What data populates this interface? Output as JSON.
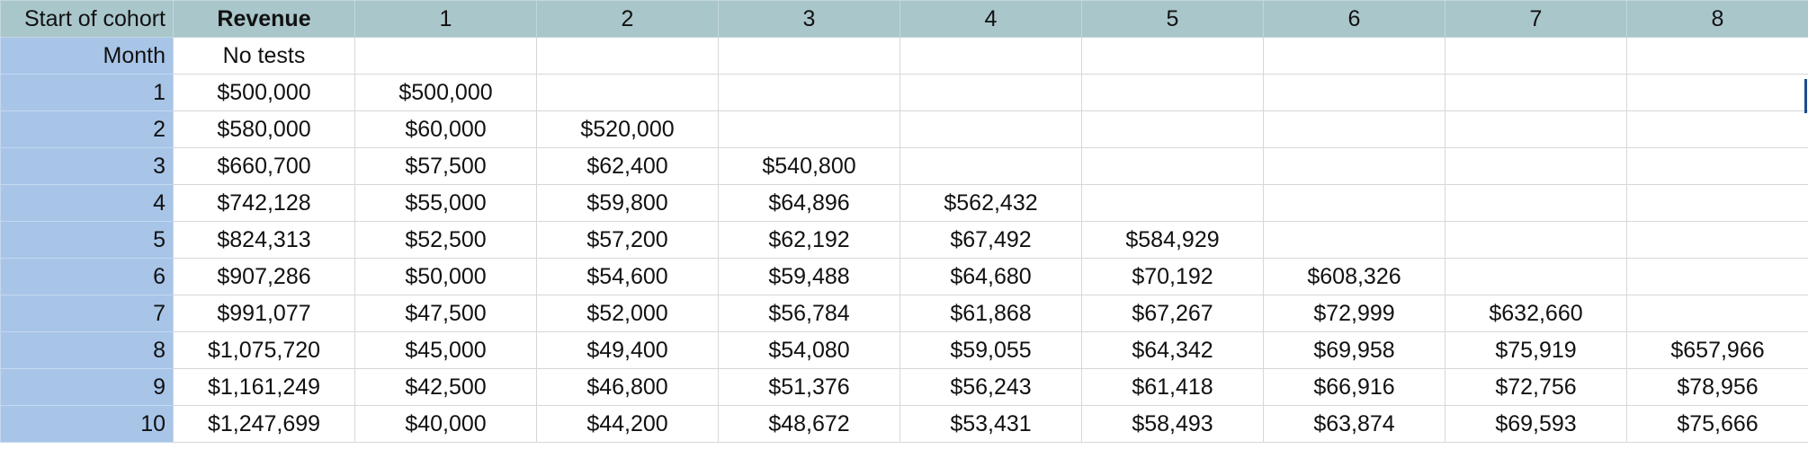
{
  "header": {
    "first": "Start of cohort",
    "revenue": "Revenue",
    "months": [
      "1",
      "2",
      "3",
      "4",
      "5",
      "6",
      "7",
      "8"
    ]
  },
  "subheader": {
    "label": "Month",
    "revenue": "No tests"
  },
  "rows": [
    {
      "month": "1",
      "revenue": "$500,000",
      "cells": [
        "$500,000",
        "",
        "",
        "",
        "",
        "",
        "",
        ""
      ]
    },
    {
      "month": "2",
      "revenue": "$580,000",
      "cells": [
        "$60,000",
        "$520,000",
        "",
        "",
        "",
        "",
        "",
        ""
      ]
    },
    {
      "month": "3",
      "revenue": "$660,700",
      "cells": [
        "$57,500",
        "$62,400",
        "$540,800",
        "",
        "",
        "",
        "",
        ""
      ]
    },
    {
      "month": "4",
      "revenue": "$742,128",
      "cells": [
        "$55,000",
        "$59,800",
        "$64,896",
        "$562,432",
        "",
        "",
        "",
        ""
      ]
    },
    {
      "month": "5",
      "revenue": "$824,313",
      "cells": [
        "$52,500",
        "$57,200",
        "$62,192",
        "$67,492",
        "$584,929",
        "",
        "",
        ""
      ]
    },
    {
      "month": "6",
      "revenue": "$907,286",
      "cells": [
        "$50,000",
        "$54,600",
        "$59,488",
        "$64,680",
        "$70,192",
        "$608,326",
        "",
        ""
      ]
    },
    {
      "month": "7",
      "revenue": "$991,077",
      "cells": [
        "$47,500",
        "$52,000",
        "$56,784",
        "$61,868",
        "$67,267",
        "$72,999",
        "$632,660",
        ""
      ]
    },
    {
      "month": "8",
      "revenue": "$1,075,720",
      "cells": [
        "$45,000",
        "$49,400",
        "$54,080",
        "$59,055",
        "$64,342",
        "$69,958",
        "$75,919",
        "$657,966"
      ]
    },
    {
      "month": "9",
      "revenue": "$1,161,249",
      "cells": [
        "$42,500",
        "$46,800",
        "$51,376",
        "$56,243",
        "$61,418",
        "$66,916",
        "$72,756",
        "$78,956"
      ]
    },
    {
      "month": "10",
      "revenue": "$1,247,699",
      "cells": [
        "$40,000",
        "$44,200",
        "$48,672",
        "$53,431",
        "$58,493",
        "$63,874",
        "$69,593",
        "$75,666"
      ]
    }
  ],
  "colors": {
    "header_bg": "#a9c6cb",
    "row_header_bg": "#a8c5e8",
    "grid_line": "#d7d7d7",
    "selection": "#1a4c8f"
  }
}
